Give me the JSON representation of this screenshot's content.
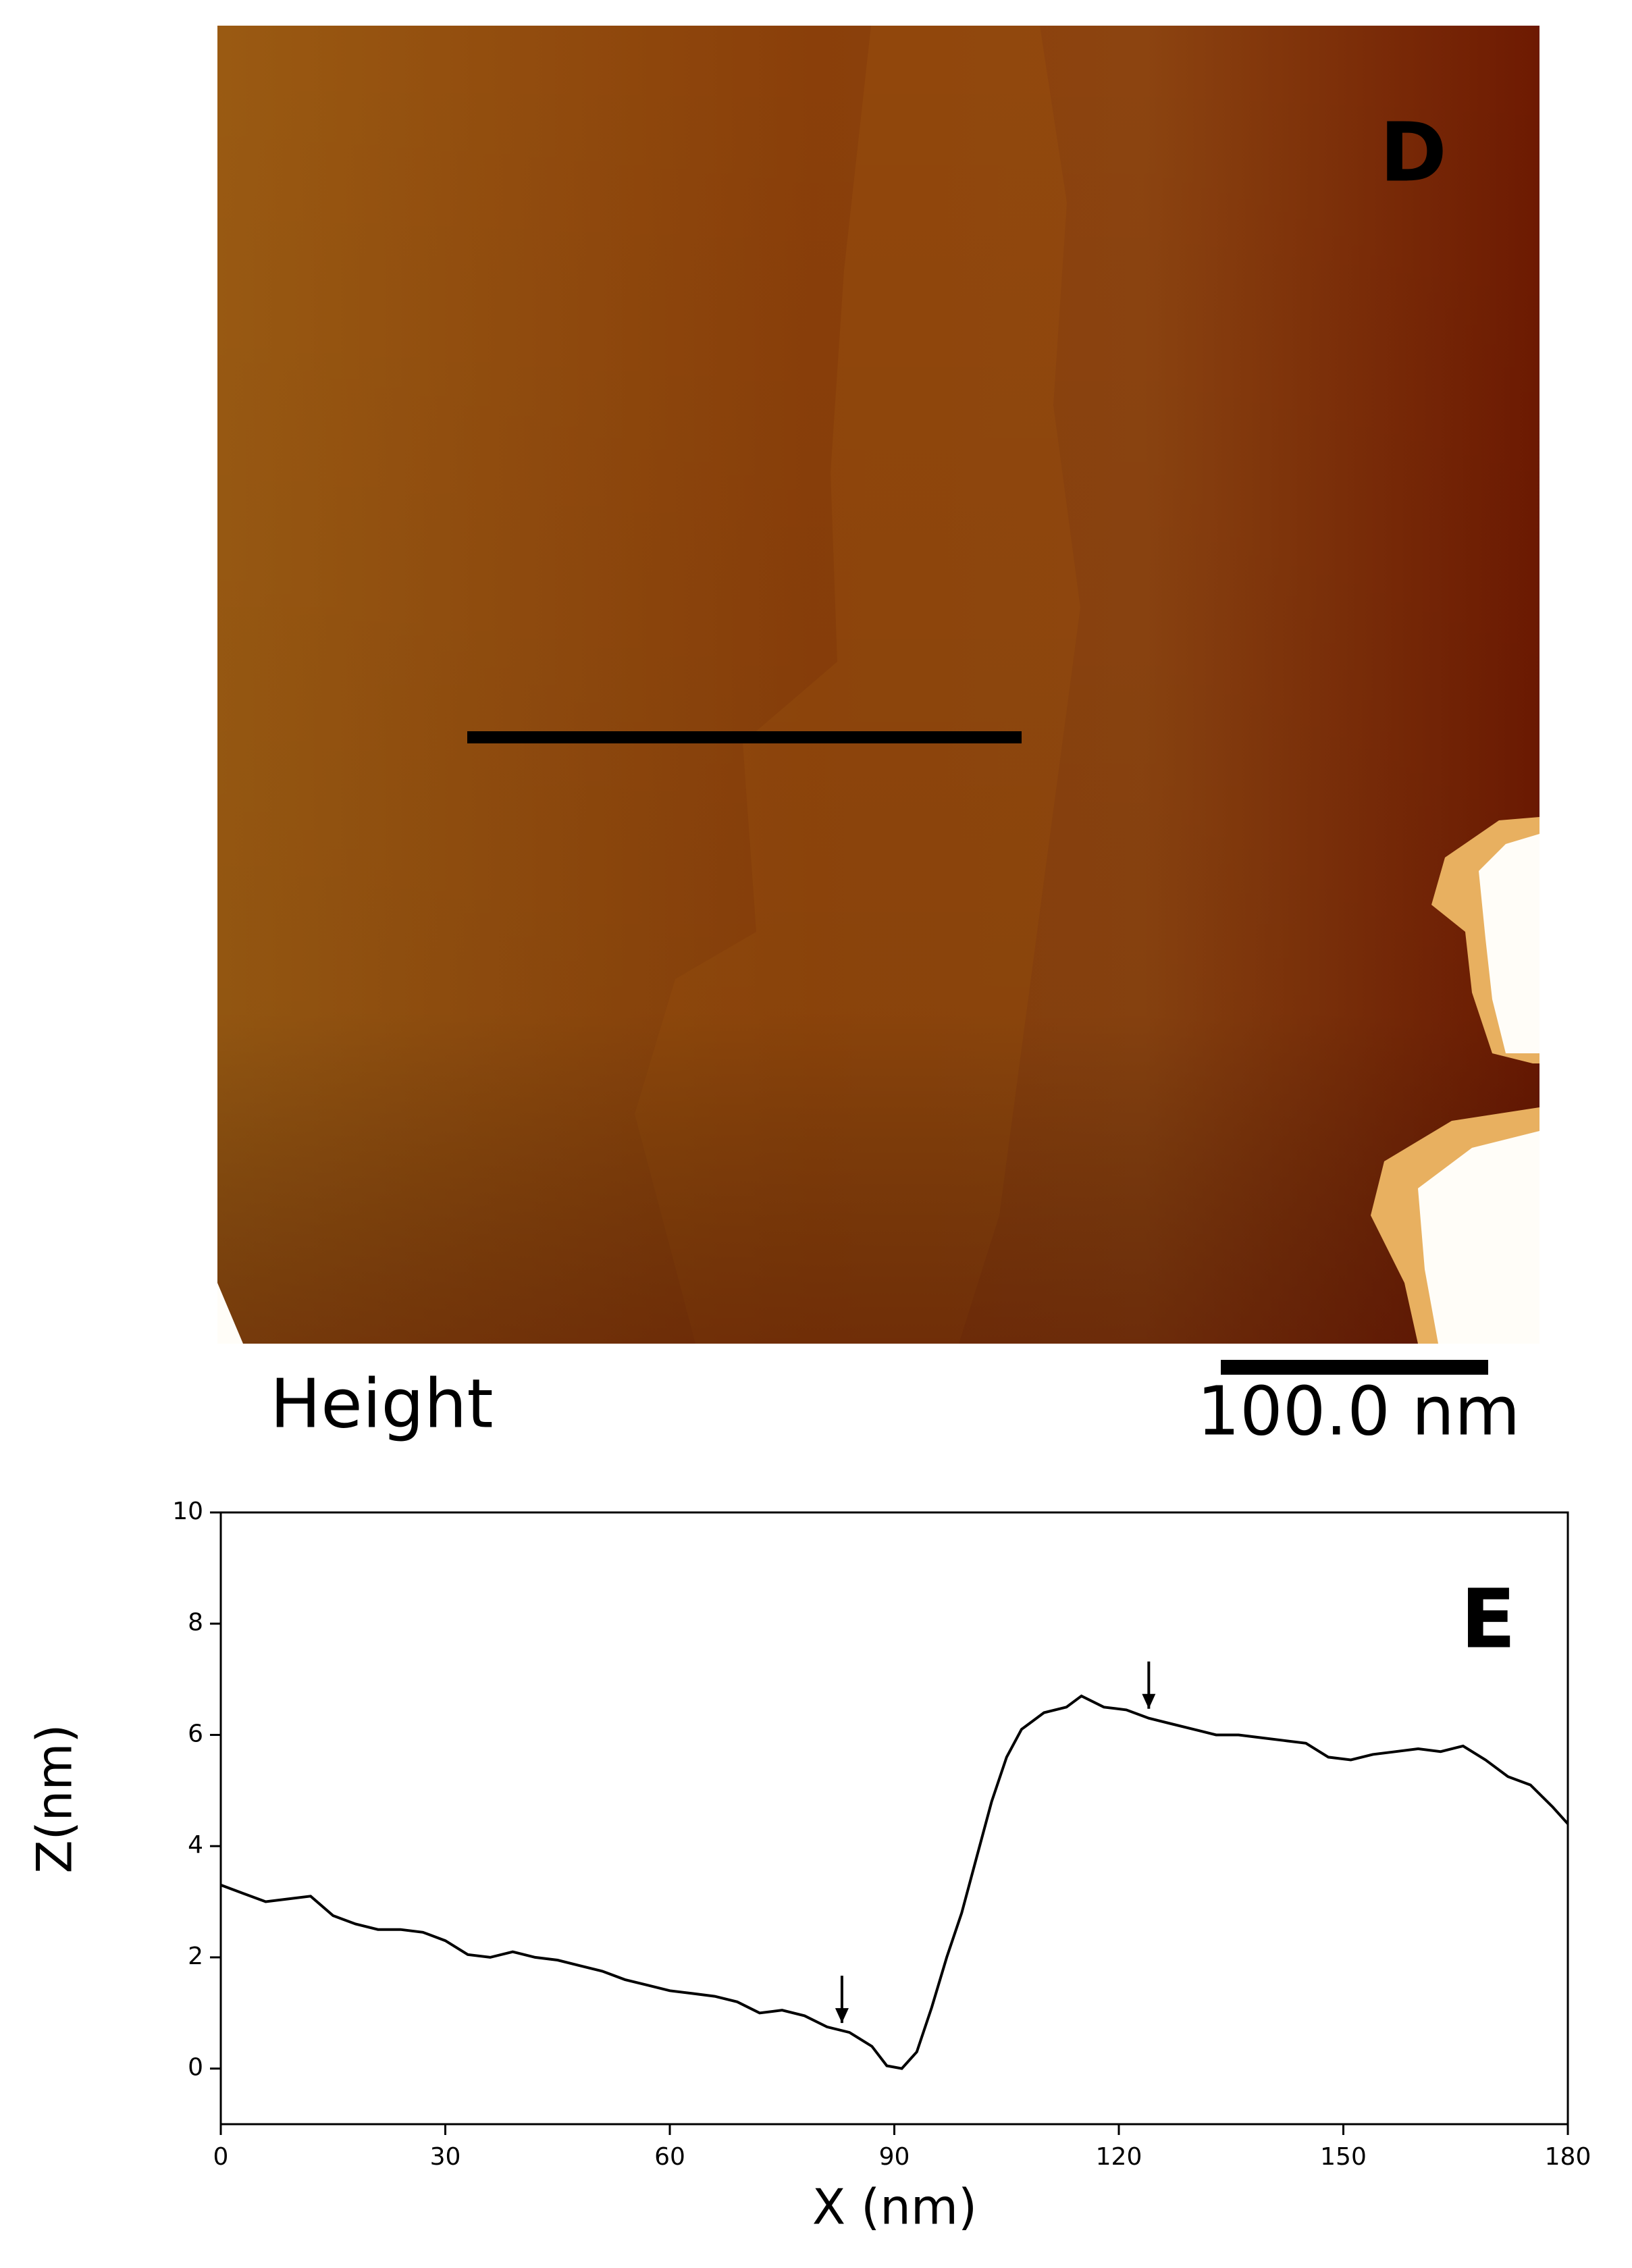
{
  "image_panel": {
    "label": "D",
    "caption": "Height",
    "scale_bar": "100.0 nm"
  },
  "chart_data": {
    "type": "line",
    "label": "E",
    "xlabel": "X (nm)",
    "ylabel": "Z(nm)",
    "x": [
      0,
      3,
      6,
      9,
      12,
      15,
      18,
      21,
      24,
      27,
      30,
      33,
      36,
      39,
      42,
      45,
      48,
      51,
      54,
      57,
      60,
      63,
      66,
      69,
      72,
      75,
      78,
      81,
      84,
      87,
      89,
      91,
      93,
      95,
      97,
      99,
      101,
      103,
      105,
      107,
      110,
      113,
      115,
      118,
      121,
      124,
      127,
      130,
      133,
      136,
      139,
      142,
      145,
      148,
      151,
      154,
      157,
      160,
      163,
      166,
      169,
      172,
      175,
      178,
      180
    ],
    "values": [
      3.3,
      3.15,
      3.0,
      3.05,
      3.1,
      2.75,
      2.6,
      2.5,
      2.5,
      2.45,
      2.3,
      2.05,
      2.0,
      2.1,
      2.0,
      1.95,
      1.85,
      1.75,
      1.6,
      1.5,
      1.4,
      1.35,
      1.3,
      1.2,
      1.0,
      1.05,
      0.95,
      0.75,
      0.65,
      0.4,
      0.05,
      0.0,
      0.3,
      1.1,
      2.0,
      2.8,
      3.8,
      4.8,
      5.6,
      6.1,
      6.4,
      6.5,
      6.7,
      6.5,
      6.45,
      6.3,
      6.2,
      6.1,
      6.0,
      6.0,
      5.95,
      5.9,
      5.85,
      5.6,
      5.55,
      5.65,
      5.7,
      5.75,
      5.7,
      5.8,
      5.55,
      5.25,
      5.1,
      4.7,
      4.4
    ],
    "color": "#000000",
    "arrows_x": [
      83,
      124
    ],
    "xlim": [
      0,
      180
    ],
    "xticks": [
      0,
      30,
      60,
      90,
      120,
      150,
      180
    ],
    "ylim": [
      -1,
      10
    ],
    "yticks": [
      0,
      2,
      4,
      6,
      8,
      10
    ]
  }
}
